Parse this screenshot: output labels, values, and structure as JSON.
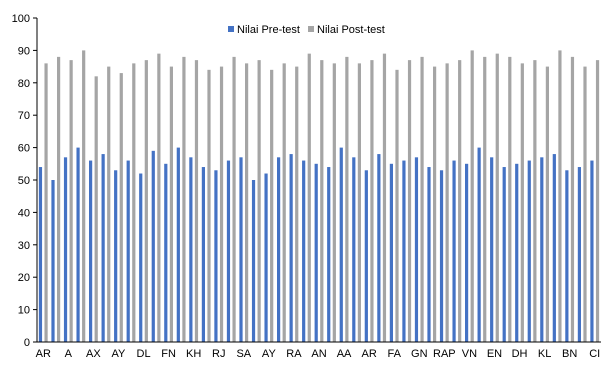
{
  "chart_data": {
    "type": "bar",
    "title": "",
    "xlabel": "",
    "ylabel": "",
    "ylim": [
      0,
      100
    ],
    "yticks": [
      0,
      10,
      20,
      30,
      40,
      50,
      60,
      70,
      80,
      90,
      100
    ],
    "grid": false,
    "legend_position": "top-center",
    "x_tick_labels": [
      "AR",
      "A",
      "AX",
      "AY",
      "DL",
      "FN",
      "KH",
      "RJ",
      "SA",
      "AY",
      "RA",
      "AN",
      "AA",
      "AR",
      "FA",
      "GN",
      "RAP",
      "VN",
      "EN",
      "DH",
      "KL",
      "BN",
      "CI"
    ],
    "series": [
      {
        "name": "Nilai Pre-test",
        "color": "#4472c4",
        "values": [
          54,
          50,
          57,
          60,
          56,
          58,
          53,
          56,
          52,
          59,
          55,
          60,
          57,
          54,
          53,
          56,
          57,
          50,
          52,
          57,
          58,
          56,
          55,
          54,
          60,
          57,
          53,
          58,
          55,
          56,
          57,
          54,
          53,
          56,
          55,
          60,
          57,
          54,
          55,
          56,
          57,
          58,
          53,
          54,
          56
        ]
      },
      {
        "name": "Nilai Post-test",
        "color": "#a5a5a5",
        "values": [
          86,
          88,
          87,
          90,
          82,
          85,
          83,
          86,
          87,
          89,
          85,
          88,
          87,
          84,
          85,
          88,
          86,
          87,
          84,
          86,
          85,
          89,
          87,
          86,
          88,
          86,
          87,
          89,
          84,
          87,
          88,
          85,
          86,
          87,
          90,
          88,
          89,
          88,
          86,
          87,
          85,
          90,
          88,
          85,
          87
        ]
      }
    ]
  }
}
